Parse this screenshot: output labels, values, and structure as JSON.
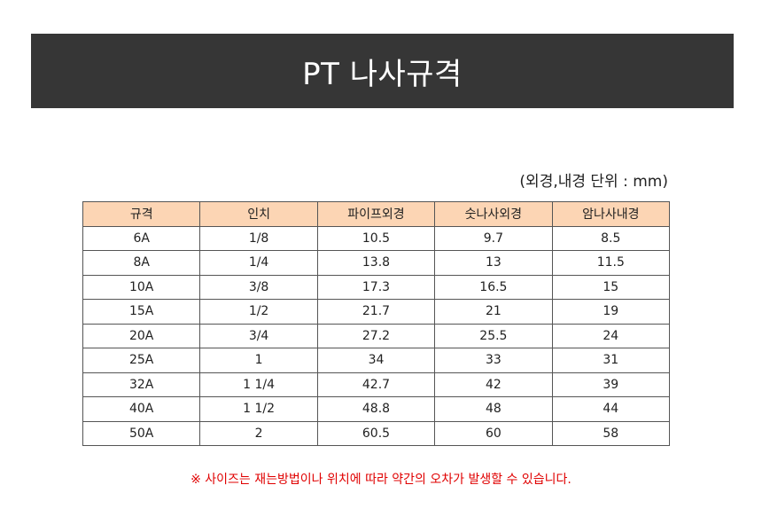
{
  "title": "PT 나사규격",
  "unit_note": "(외경,내경 단위 : mm)",
  "table": {
    "headers": [
      "규격",
      "인치",
      "파이프외경",
      "숫나사외경",
      "암나사내경"
    ],
    "rows": [
      [
        "6A",
        "1/8",
        "10.5",
        "9.7",
        "8.5"
      ],
      [
        "8A",
        "1/4",
        "13.8",
        "13",
        "11.5"
      ],
      [
        "10A",
        "3/8",
        "17.3",
        "16.5",
        "15"
      ],
      [
        "15A",
        "1/2",
        "21.7",
        "21",
        "19"
      ],
      [
        "20A",
        "3/4",
        "27.2",
        "25.5",
        "24"
      ],
      [
        "25A",
        "1",
        "34",
        "33",
        "31"
      ],
      [
        "32A",
        "1 1/4",
        "42.7",
        "42",
        "39"
      ],
      [
        "40A",
        "1 1/2",
        "48.8",
        "48",
        "44"
      ],
      [
        "50A",
        "2",
        "60.5",
        "60",
        "58"
      ]
    ]
  },
  "footnote": "※ 사이즈는 재는방법이나 위치에 따라 약간의 오차가 발생할 수 있습니다.",
  "colors": {
    "title_bg": "#363636",
    "header_bg": "#fcd5b4",
    "footnote": "#e00000"
  }
}
